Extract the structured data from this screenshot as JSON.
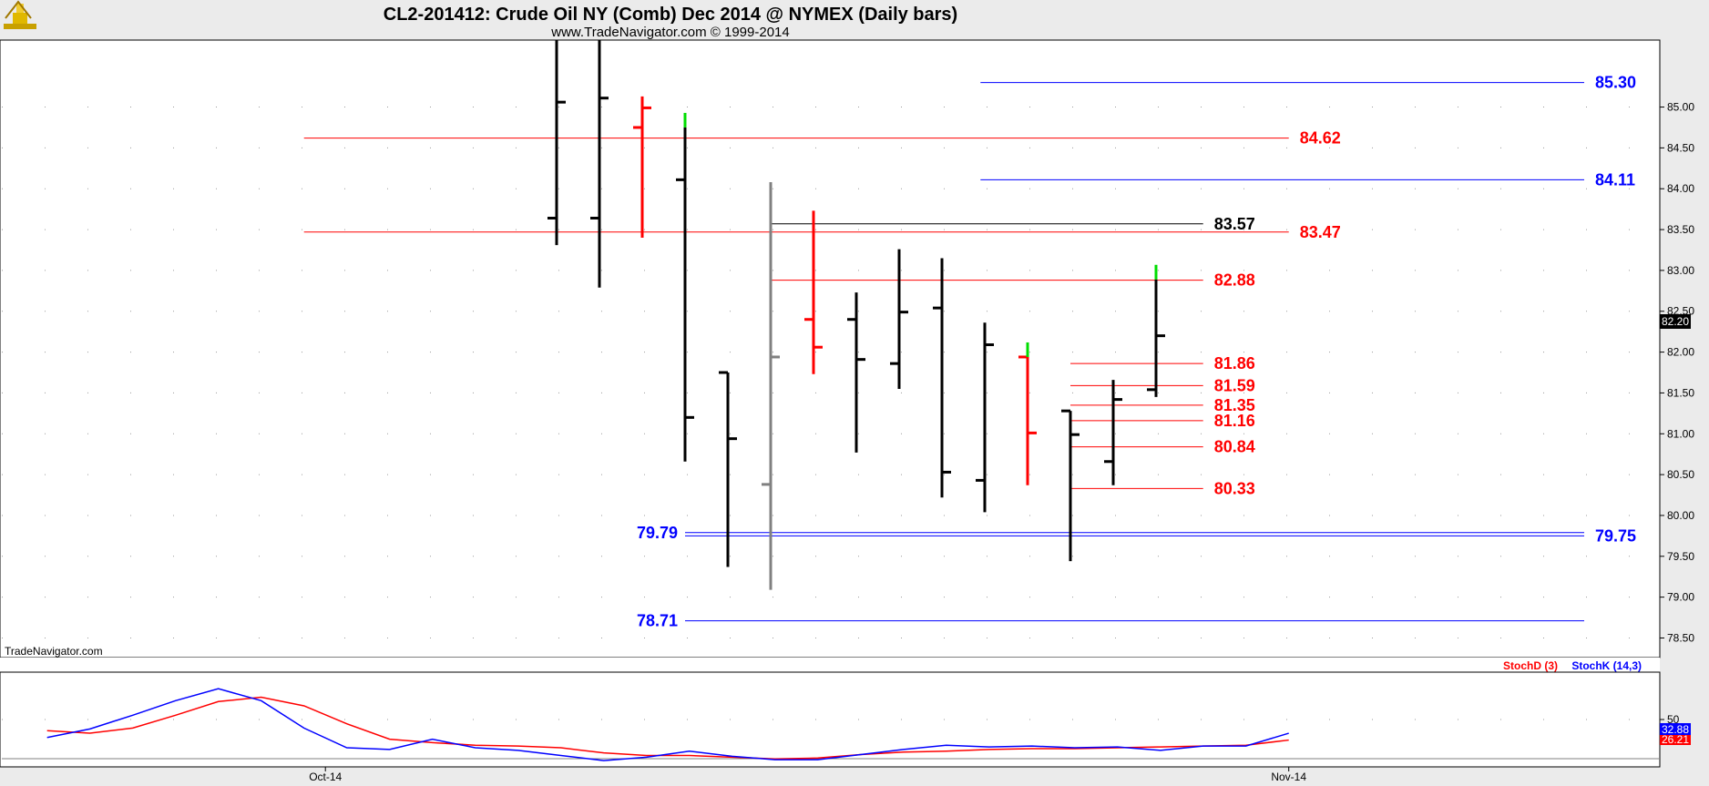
{
  "header": {
    "title": "CL2-201412:  Crude Oil NY (Comb) Dec 2014 @ NYMEX  (Daily bars)",
    "subtitle": "www.TradeNavigator.com © 1999-2014"
  },
  "watermark": "TradeNavigator.com",
  "colors": {
    "up": "#000000",
    "down": "#ff0000",
    "gray": "#808080",
    "blue": "#0000ff",
    "red": "#ff0000",
    "black": "#000000",
    "green": "#00dd00"
  },
  "chart_data": [
    {
      "type": "ohlc",
      "title": "",
      "xlabel": "",
      "ylabel": "",
      "ylim": [
        78.26,
        85.82
      ],
      "y_ticks": [
        "85.00",
        "84.50",
        "84.00",
        "83.50",
        "83.00",
        "82.50",
        "82.00",
        "81.50",
        "81.00",
        "80.50",
        "80.00",
        "79.50",
        "79.00",
        "78.50"
      ],
      "x_tick_labels": [
        {
          "label": "Oct-14",
          "bar_index": -5.4
        },
        {
          "label": "Nov-14",
          "bar_index": 17.1
        }
      ],
      "bars": [
        {
          "open": 83.64,
          "high": 85.82,
          "low": 83.31,
          "close": 85.06,
          "color": "up"
        },
        {
          "open": 83.64,
          "high": 85.82,
          "low": 82.79,
          "close": 85.11,
          "color": "up"
        },
        {
          "open": 84.75,
          "high": 85.13,
          "low": 83.4,
          "close": 84.99,
          "color": "down"
        },
        {
          "open": 84.11,
          "high": 84.75,
          "low": 80.66,
          "close": 81.2,
          "color": "up",
          "tip": "green"
        },
        {
          "open": 81.75,
          "high": 81.75,
          "low": 79.37,
          "close": 80.94,
          "color": "up"
        },
        {
          "open": 80.38,
          "high": 84.08,
          "low": 79.09,
          "close": 81.94,
          "color": "gray"
        },
        {
          "open": 82.4,
          "high": 83.73,
          "low": 81.73,
          "close": 82.06,
          "color": "down"
        },
        {
          "open": 82.4,
          "high": 82.73,
          "low": 80.77,
          "close": 81.91,
          "color": "up"
        },
        {
          "open": 81.86,
          "high": 83.26,
          "low": 81.55,
          "close": 82.49,
          "color": "up"
        },
        {
          "open": 82.54,
          "high": 83.15,
          "low": 80.22,
          "close": 80.53,
          "color": "up"
        },
        {
          "open": 80.43,
          "high": 82.36,
          "low": 80.04,
          "close": 82.09,
          "color": "up"
        },
        {
          "open": 81.94,
          "high": 81.94,
          "low": 80.37,
          "close": 81.01,
          "color": "down",
          "tip": "green"
        },
        {
          "open": 81.28,
          "high": 81.28,
          "low": 79.44,
          "close": 80.99,
          "color": "up"
        },
        {
          "open": 80.66,
          "high": 81.66,
          "low": 80.37,
          "close": 81.42,
          "color": "up"
        },
        {
          "open": 81.54,
          "high": 82.89,
          "low": 81.45,
          "close": 82.2,
          "color": "up",
          "tip": "green"
        }
      ],
      "last_price": "82.20",
      "levels": [
        {
          "value": 85.3,
          "label": "85.30",
          "color": "blue",
          "x_from": 9.9,
          "x_to": 24.0,
          "label_side": "right"
        },
        {
          "value": 84.62,
          "label": "84.62",
          "color": "red",
          "x_from": -5.9,
          "x_to": 17.1,
          "label_side": "right"
        },
        {
          "value": 84.11,
          "label": "84.11",
          "color": "blue",
          "x_from": 9.9,
          "x_to": 24.0,
          "label_side": "right"
        },
        {
          "value": 83.57,
          "label": "83.57",
          "color": "black",
          "x_from": 5.0,
          "x_to": 15.1,
          "label_side": "right"
        },
        {
          "value": 83.47,
          "label": "83.47",
          "color": "red",
          "x_from": -5.9,
          "x_to": 17.1,
          "label_side": "right"
        },
        {
          "value": 82.88,
          "label": "82.88",
          "color": "red",
          "x_from": 5.0,
          "x_to": 15.1,
          "label_side": "right"
        },
        {
          "value": 81.86,
          "label": "81.86",
          "color": "red",
          "x_from": 12.0,
          "x_to": 15.1,
          "label_side": "right"
        },
        {
          "value": 81.59,
          "label": "81.59",
          "color": "red",
          "x_from": 12.0,
          "x_to": 15.1,
          "label_side": "right"
        },
        {
          "value": 81.35,
          "label": "81.35",
          "color": "red",
          "x_from": 12.0,
          "x_to": 15.1,
          "label_side": "right"
        },
        {
          "value": 81.16,
          "label": "81.16",
          "color": "red",
          "x_from": 12.0,
          "x_to": 15.1,
          "label_side": "right"
        },
        {
          "value": 80.84,
          "label": "80.84",
          "color": "red",
          "x_from": 12.0,
          "x_to": 15.1,
          "label_side": "right"
        },
        {
          "value": 80.33,
          "label": "80.33",
          "color": "red",
          "x_from": 12.0,
          "x_to": 15.1,
          "label_side": "right"
        },
        {
          "value": 79.79,
          "label": "79.79",
          "color": "blue",
          "x_from": 3.0,
          "x_to": 24.0,
          "label_side": "left"
        },
        {
          "value": 79.75,
          "label": "79.75",
          "color": "blue",
          "x_from": 3.0,
          "x_to": 24.0,
          "label_side": "right"
        },
        {
          "value": 78.71,
          "label": "78.71",
          "color": "blue",
          "x_from": 3.0,
          "x_to": 24.0,
          "label_side": "left"
        }
      ]
    },
    {
      "type": "line",
      "title": "",
      "legend": [
        "StochD (3)",
        "StochK (14,3)"
      ],
      "ylim": [
        0,
        100
      ],
      "y_ticks": [
        "50"
      ],
      "x_start": -11.9,
      "series": [
        {
          "name": "StochD (3)",
          "color": "red",
          "value_label": "26.21",
          "values": [
            37,
            34,
            40,
            55,
            71,
            76,
            66,
            45,
            27,
            23,
            20,
            19,
            17,
            11,
            8,
            8,
            6,
            4,
            5,
            9,
            12,
            13,
            15,
            16,
            16,
            17,
            18,
            19,
            20,
            26
          ]
        },
        {
          "name": "StochK (14,3)",
          "color": "blue",
          "value_label": "32.88",
          "values": [
            29,
            39,
            55,
            72,
            86,
            72,
            40,
            17,
            15,
            27,
            17,
            14,
            8,
            2,
            6,
            13,
            7,
            3,
            3,
            9,
            15,
            20,
            18,
            19,
            17,
            18,
            14,
            19,
            19,
            34
          ]
        }
      ]
    }
  ]
}
